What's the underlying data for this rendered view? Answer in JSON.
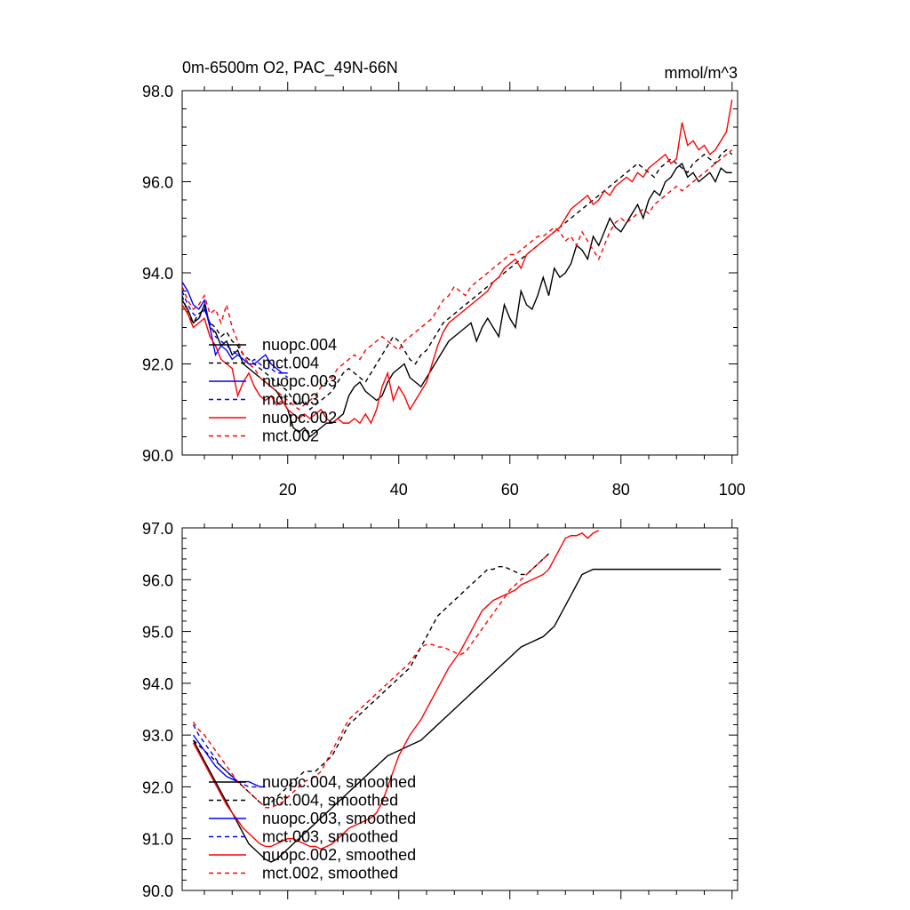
{
  "chart_data": [
    {
      "type": "line",
      "title": "0m-6500m O2, PAC_49N-66N",
      "units_label": "mmol/m^3",
      "xlabel": "",
      "ylabel": "",
      "xlim": [
        1,
        101
      ],
      "ylim": [
        90.0,
        98.0
      ],
      "yticks": [
        "90.0",
        "92.0",
        "94.0",
        "96.0",
        "98.0"
      ],
      "xticks": [
        "20",
        "40",
        "60",
        "80",
        "100"
      ],
      "grid": false,
      "legend_position": "lower-left",
      "series": [
        {
          "name": "nuopc.004",
          "color": "#000000",
          "dash": "solid",
          "x_start": 1,
          "values": [
            93.4,
            93.2,
            92.9,
            93.0,
            93.3,
            92.8,
            92.7,
            92.4,
            92.5,
            92.2,
            92.3,
            92.0,
            91.9,
            91.8,
            91.7,
            91.6,
            91.5,
            91.4,
            91.2,
            91.0,
            90.6,
            90.5,
            90.6,
            90.4,
            90.5,
            90.6,
            90.7,
            90.7,
            90.8,
            90.9,
            91.3,
            91.5,
            91.6,
            91.4,
            91.3,
            91.2,
            91.3,
            91.6,
            91.8,
            91.9,
            92.0,
            91.7,
            91.6,
            91.5,
            91.7,
            91.9,
            92.1,
            92.3,
            92.5,
            92.6,
            92.7,
            92.8,
            92.9,
            92.5,
            92.8,
            93.0,
            92.8,
            92.6,
            93.3,
            93.0,
            92.8,
            93.6,
            93.3,
            93.2,
            93.5,
            93.9,
            93.5,
            94.1,
            93.9,
            94.0,
            94.2,
            94.6,
            94.5,
            94.3,
            94.8,
            94.6,
            94.9,
            95.2,
            95.0,
            94.9,
            95.1,
            95.3,
            95.5,
            95.2,
            95.6,
            95.8,
            95.7,
            96.0,
            96.1,
            96.3,
            96.4,
            96.1,
            96.2,
            96.0,
            96.1,
            96.2,
            96.0,
            96.3,
            96.2,
            96.2
          ]
        },
        {
          "name": "mct.004",
          "color": "#000000",
          "dash": "dashed",
          "x_start": 1,
          "values": [
            93.5,
            93.1,
            92.9,
            93.1,
            93.2,
            92.9,
            92.8,
            92.6,
            92.7,
            92.5,
            92.4,
            92.2,
            92.1,
            92.0,
            91.9,
            91.8,
            91.7,
            91.6,
            91.5,
            91.4,
            91.2,
            91.1,
            91.2,
            91.0,
            91.1,
            91.2,
            91.3,
            91.4,
            91.6,
            91.8,
            91.9,
            91.8,
            91.7,
            91.6,
            91.8,
            92.0,
            92.2,
            92.4,
            92.6,
            92.5,
            92.3,
            92.1,
            92.0,
            92.2,
            92.3,
            92.5,
            92.7,
            92.9,
            93.0,
            93.1,
            93.2,
            93.3,
            93.4,
            93.5,
            93.6,
            93.7,
            93.8,
            93.9,
            94.0,
            94.1,
            94.2,
            94.3,
            94.4,
            94.5,
            94.6,
            94.7,
            94.8,
            94.9,
            95.0,
            95.1,
            95.2,
            95.3,
            95.4,
            95.5,
            95.6,
            95.7,
            95.8,
            95.9,
            96.0,
            96.1,
            96.2,
            96.3,
            96.4,
            96.3,
            96.2,
            96.1,
            96.3,
            96.4,
            96.5,
            96.4,
            96.3,
            96.2,
            96.4,
            96.5,
            96.6,
            96.5,
            96.4,
            96.6,
            96.7,
            96.6
          ]
        },
        {
          "name": "nuopc.003",
          "color": "#0000ff",
          "dash": "solid",
          "x_start": 1,
          "values": [
            93.8,
            93.6,
            93.3,
            93.2,
            93.4,
            92.8,
            92.2,
            92.4,
            92.3,
            92.1,
            92.2,
            92.1,
            92.0,
            92.0,
            92.1,
            92.2,
            92.0,
            91.9,
            91.8,
            91.8
          ]
        },
        {
          "name": "mct.003",
          "color": "#0000ff",
          "dash": "dashed",
          "x_start": 1,
          "values": [
            93.6,
            93.3,
            93.1,
            93.0,
            93.2,
            92.9,
            92.6,
            92.5,
            92.4,
            92.3,
            92.2,
            92.1,
            92.0,
            92.1,
            92.0,
            91.9,
            91.9,
            91.8,
            91.8,
            91.7
          ]
        },
        {
          "name": "nuopc.002",
          "color": "#ff0000",
          "dash": "solid",
          "x_start": 1,
          "values": [
            93.3,
            93.1,
            92.8,
            92.9,
            93.0,
            92.6,
            92.4,
            92.1,
            92.0,
            91.9,
            91.3,
            91.6,
            91.8,
            91.5,
            91.3,
            91.2,
            91.3,
            91.1,
            91.2,
            91.0,
            90.9,
            90.8,
            90.9,
            90.8,
            90.9,
            91.0,
            90.8,
            90.7,
            90.8,
            90.7,
            90.7,
            90.8,
            90.7,
            90.9,
            90.7,
            91.0,
            91.5,
            91.8,
            91.2,
            91.5,
            91.3,
            91.0,
            91.2,
            91.4,
            91.6,
            92.0,
            92.4,
            92.7,
            92.9,
            93.0,
            93.1,
            93.2,
            93.3,
            93.4,
            93.5,
            93.6,
            93.8,
            93.9,
            94.1,
            94.2,
            94.3,
            94.1,
            94.4,
            94.5,
            94.6,
            94.7,
            94.8,
            94.9,
            95.0,
            95.2,
            95.4,
            95.5,
            95.6,
            95.7,
            95.5,
            95.6,
            95.8,
            95.7,
            95.9,
            96.0,
            96.1,
            96.0,
            96.2,
            96.1,
            96.3,
            96.4,
            96.5,
            96.6,
            96.4,
            96.5,
            97.3,
            96.8,
            96.9,
            96.7,
            96.8,
            96.6,
            96.7,
            96.9,
            97.1,
            97.8
          ]
        },
        {
          "name": "mct.002",
          "color": "#ff0000",
          "dash": "dashed",
          "x_start": 1,
          "values": [
            93.7,
            93.4,
            93.2,
            93.3,
            93.5,
            93.1,
            93.2,
            92.9,
            93.3,
            92.8,
            92.5,
            92.2,
            92.0,
            91.9,
            91.7,
            91.6,
            91.5,
            91.4,
            91.3,
            91.2,
            91.1,
            91.0,
            91.1,
            91.2,
            91.3,
            91.5,
            91.6,
            91.7,
            91.9,
            92.0,
            92.1,
            92.2,
            92.1,
            92.3,
            92.4,
            92.5,
            92.6,
            92.5,
            92.4,
            92.3,
            92.5,
            92.6,
            92.7,
            92.8,
            92.9,
            93.0,
            93.2,
            93.4,
            93.5,
            93.7,
            93.6,
            93.5,
            93.7,
            93.8,
            93.9,
            94.0,
            94.1,
            94.2,
            94.3,
            94.4,
            94.4,
            94.5,
            94.6,
            94.7,
            94.8,
            94.8,
            94.9,
            95.0,
            94.9,
            94.7,
            94.8,
            94.6,
            94.9,
            94.7,
            94.5,
            94.3,
            94.6,
            94.9,
            95.1,
            95.2,
            95.1,
            95.2,
            95.3,
            95.4,
            95.3,
            95.5,
            95.6,
            95.7,
            95.8,
            95.9,
            95.8,
            95.9,
            96.0,
            96.1,
            96.2,
            96.3,
            96.4,
            96.5,
            96.6,
            96.7
          ]
        }
      ]
    },
    {
      "type": "line",
      "title": "",
      "xlabel": "",
      "ylabel": "",
      "xlim": [
        1,
        101
      ],
      "ylim": [
        90.0,
        97.0
      ],
      "yticks": [
        "90.0",
        "91.0",
        "92.0",
        "93.0",
        "94.0",
        "95.0",
        "96.0",
        "97.0"
      ],
      "xticks": [],
      "grid": false,
      "legend_position": "lower-left",
      "series": [
        {
          "name": "nuopc.004, smoothed",
          "color": "#000000",
          "dash": "solid",
          "x_start": 3,
          "values": [
            92.9,
            92.7,
            92.5,
            92.3,
            92.1,
            91.9,
            91.7,
            91.5,
            91.3,
            91.1,
            90.9,
            90.8,
            90.7,
            90.6,
            90.55,
            90.6,
            90.7,
            90.8,
            90.9,
            91.0,
            91.1,
            91.2,
            91.3,
            91.4,
            91.5,
            91.6,
            91.7,
            91.8,
            91.9,
            92.0,
            92.1,
            92.2,
            92.3,
            92.4,
            92.5,
            92.6,
            92.65,
            92.7,
            92.75,
            92.8,
            92.85,
            92.9,
            93.0,
            93.1,
            93.2,
            93.3,
            93.4,
            93.5,
            93.6,
            93.7,
            93.8,
            93.9,
            94.0,
            94.1,
            94.2,
            94.3,
            94.4,
            94.5,
            94.6,
            94.7,
            94.75,
            94.8,
            94.85,
            94.9,
            95.0,
            95.1,
            95.3,
            95.5,
            95.7,
            95.9,
            96.1,
            96.15,
            96.2,
            96.2,
            96.2,
            96.2,
            96.2,
            96.2,
            96.2,
            96.2,
            96.2,
            96.2,
            96.2,
            96.2,
            96.2,
            96.2,
            96.2,
            96.2,
            96.2,
            96.2,
            96.2,
            96.2,
            96.2,
            96.2,
            96.2,
            96.2
          ]
        },
        {
          "name": "mct.004, smoothed",
          "color": "#000000",
          "dash": "dashed",
          "x_start": 3,
          "values": [
            92.9,
            92.8,
            92.7,
            92.6,
            92.5,
            92.4,
            92.3,
            92.2,
            92.1,
            92.0,
            91.9,
            91.8,
            91.7,
            91.65,
            91.7,
            91.8,
            91.9,
            92.0,
            92.1,
            92.2,
            92.3,
            92.3,
            92.3,
            92.4,
            92.5,
            92.6,
            92.8,
            93.0,
            93.2,
            93.3,
            93.4,
            93.5,
            93.6,
            93.7,
            93.8,
            93.9,
            94.0,
            94.1,
            94.2,
            94.3,
            94.5,
            94.7,
            94.9,
            95.1,
            95.3,
            95.4,
            95.5,
            95.6,
            95.7,
            95.8,
            95.9,
            96.0,
            96.1,
            96.2,
            96.2,
            96.25,
            96.25,
            96.2,
            96.15,
            96.1,
            96.1,
            96.2,
            96.3,
            96.4,
            96.5
          ]
        },
        {
          "name": "nuopc.003, smoothed",
          "color": "#0000ff",
          "dash": "solid",
          "x_start": 3,
          "values": [
            93.0,
            92.85,
            92.7,
            92.55,
            92.4,
            92.3,
            92.2,
            92.15,
            92.1,
            92.1,
            92.1,
            92.05,
            92.0,
            92.0
          ]
        },
        {
          "name": "mct.003, smoothed",
          "color": "#0000ff",
          "dash": "dashed",
          "x_start": 3,
          "values": [
            93.2,
            93.0,
            92.85,
            92.7,
            92.55,
            92.4,
            92.3,
            92.2,
            92.1,
            92.05,
            92.0,
            92.0,
            92.0,
            92.0
          ]
        },
        {
          "name": "nuopc.002, smoothed",
          "color": "#ff0000",
          "dash": "solid",
          "x_start": 3,
          "values": [
            92.85,
            92.65,
            92.45,
            92.25,
            92.05,
            91.85,
            91.65,
            91.5,
            91.35,
            91.2,
            91.1,
            91.0,
            90.9,
            90.85,
            90.85,
            90.9,
            90.95,
            91.0,
            91.0,
            90.95,
            90.9,
            90.85,
            90.85,
            90.8,
            90.85,
            90.9,
            91.0,
            91.1,
            91.2,
            91.25,
            91.3,
            91.35,
            91.4,
            91.5,
            91.7,
            92.0,
            92.3,
            92.6,
            92.8,
            93.0,
            93.15,
            93.3,
            93.5,
            93.7,
            93.9,
            94.1,
            94.3,
            94.45,
            94.6,
            94.8,
            95.0,
            95.2,
            95.4,
            95.5,
            95.6,
            95.65,
            95.7,
            95.75,
            95.8,
            95.9,
            95.95,
            96.0,
            96.05,
            96.1,
            96.2,
            96.4,
            96.6,
            96.8,
            96.85,
            96.85,
            96.9,
            96.8,
            96.9,
            96.95
          ]
        },
        {
          "name": "mct.002, smoothed",
          "color": "#ff0000",
          "dash": "dashed",
          "x_start": 3,
          "values": [
            93.25,
            93.1,
            93.0,
            92.85,
            92.7,
            92.55,
            92.4,
            92.25,
            92.1,
            92.0,
            91.9,
            91.8,
            91.7,
            91.6,
            91.6,
            91.65,
            91.7,
            91.8,
            91.9,
            92.0,
            92.1,
            92.15,
            92.2,
            92.3,
            92.5,
            92.7,
            92.9,
            93.1,
            93.3,
            93.4,
            93.5,
            93.6,
            93.7,
            93.8,
            93.9,
            94.0,
            94.1,
            94.2,
            94.3,
            94.4,
            94.55,
            94.7,
            94.75,
            94.75,
            94.7,
            94.7,
            94.65,
            94.6,
            94.55,
            94.6,
            94.75,
            94.9,
            95.05,
            95.2,
            95.35,
            95.5,
            95.65,
            95.8,
            95.9,
            96.0,
            96.1,
            96.2,
            96.3,
            96.4,
            96.5
          ]
        }
      ]
    }
  ]
}
